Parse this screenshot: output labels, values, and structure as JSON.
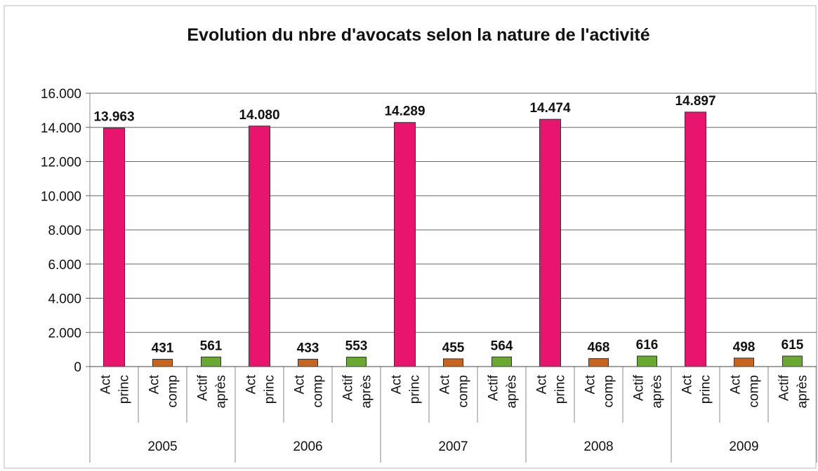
{
  "chart_data": {
    "type": "grouped-bar",
    "title": "Evolution du nbre d'avocats selon la nature de l'activité",
    "categories": [
      "2005",
      "2006",
      "2007",
      "2008",
      "2009"
    ],
    "series": [
      {
        "label_lines": [
          "Act",
          "princ"
        ],
        "color": "#e8146e",
        "values": [
          13963,
          14080,
          14289,
          14474,
          14897
        ],
        "value_labels": [
          "13.963",
          "14.080",
          "14.289",
          "14.474",
          "14.897"
        ]
      },
      {
        "label_lines": [
          "Act",
          "comp"
        ],
        "color": "#c8641e",
        "values": [
          431,
          433,
          455,
          468,
          498
        ]
      },
      {
        "label_lines": [
          "Actif",
          "après"
        ],
        "color": "#6aa832",
        "values": [
          561,
          553,
          564,
          616,
          615
        ]
      }
    ],
    "ylim": [
      0,
      16000
    ],
    "yticks": [
      0,
      {
        "value": 2000,
        "label": "2.000"
      },
      {
        "value": 4000,
        "label": "4.000"
      },
      {
        "value": 6000,
        "label": "6.000"
      },
      {
        "value": 8000,
        "label": "8.000"
      },
      {
        "value": 10000,
        "label": "10.000"
      },
      {
        "value": 12000,
        "label": "12.000"
      },
      {
        "value": 14000,
        "label": "14.000"
      },
      {
        "value": 16000,
        "label": "16.000"
      }
    ],
    "grid": true
  }
}
